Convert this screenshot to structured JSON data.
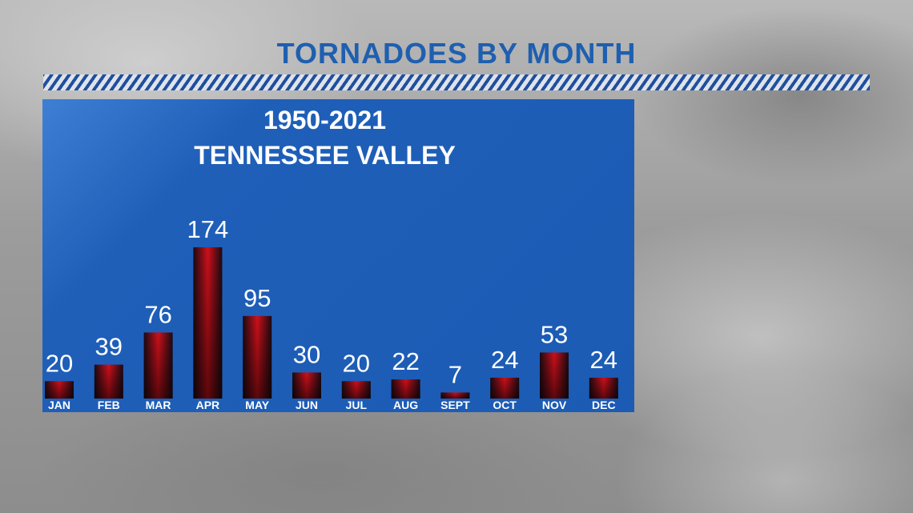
{
  "header": {
    "title": "TORNADOES BY MONTH"
  },
  "panel": {
    "subtitle_1": "1950-2021",
    "subtitle_2": "TENNESSEE VALLEY"
  },
  "colors": {
    "title": "#1e5fb0",
    "panel": "#1c5bb4",
    "bar_core": "#d0101a",
    "bar_edge": "#1a0a12",
    "text": "#ffffff"
  },
  "chart_data": {
    "type": "bar",
    "title": "TORNADOES BY MONTH",
    "subtitle": "1950-2021 TENNESSEE VALLEY",
    "categories": [
      "JAN",
      "FEB",
      "MAR",
      "APR",
      "MAY",
      "JUN",
      "JUL",
      "AUG",
      "SEPT",
      "OCT",
      "NOV",
      "DEC"
    ],
    "values": [
      20,
      39,
      76,
      174,
      95,
      30,
      20,
      22,
      7,
      24,
      53,
      24
    ],
    "xlabel": "",
    "ylabel": "",
    "ylim": [
      0,
      174
    ],
    "grid": false,
    "data_labels": true
  }
}
